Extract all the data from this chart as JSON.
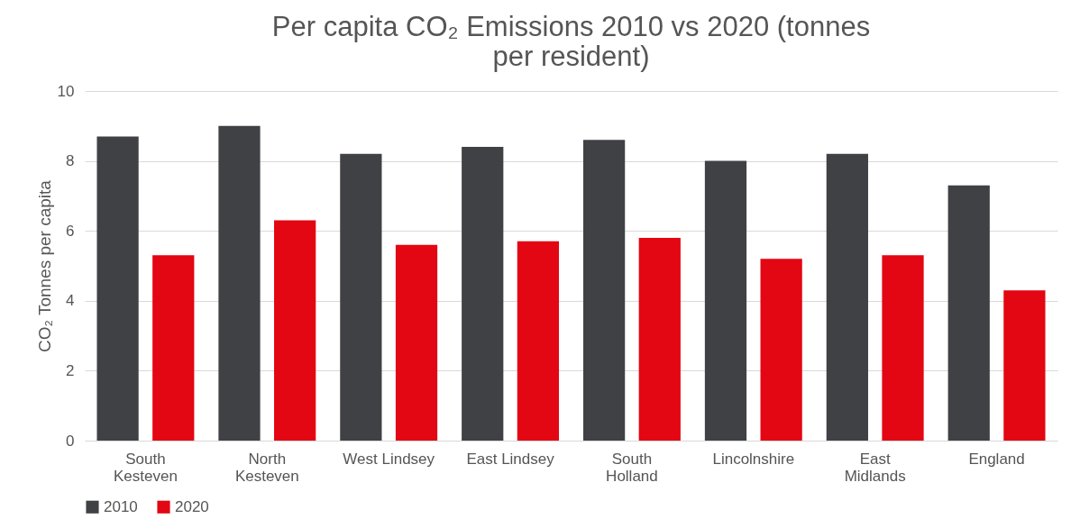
{
  "chart_data": {
    "type": "bar",
    "title": "Per capita CO₂ Emissions 2010 vs 2020 (tonnes per resident)",
    "ylabel": "CO₂ Tonnes per capita",
    "categories": [
      "South Kesteven",
      "North Kesteven",
      "West Lindsey",
      "East Lindsey",
      "South Holland",
      "Lincolnshire",
      "East Midlands",
      "England"
    ],
    "series": [
      {
        "name": "2010",
        "color": "#404145",
        "values": [
          8.7,
          9.0,
          8.2,
          8.4,
          8.6,
          8.0,
          8.2,
          7.3
        ]
      },
      {
        "name": "2020",
        "color": "#e30613",
        "values": [
          5.3,
          6.3,
          5.6,
          5.7,
          5.8,
          5.2,
          5.3,
          4.3
        ]
      }
    ],
    "ylim": [
      0,
      10
    ],
    "yticks": [
      0,
      2,
      4,
      6,
      8,
      10
    ],
    "grid": "y",
    "legend": "bottom"
  }
}
